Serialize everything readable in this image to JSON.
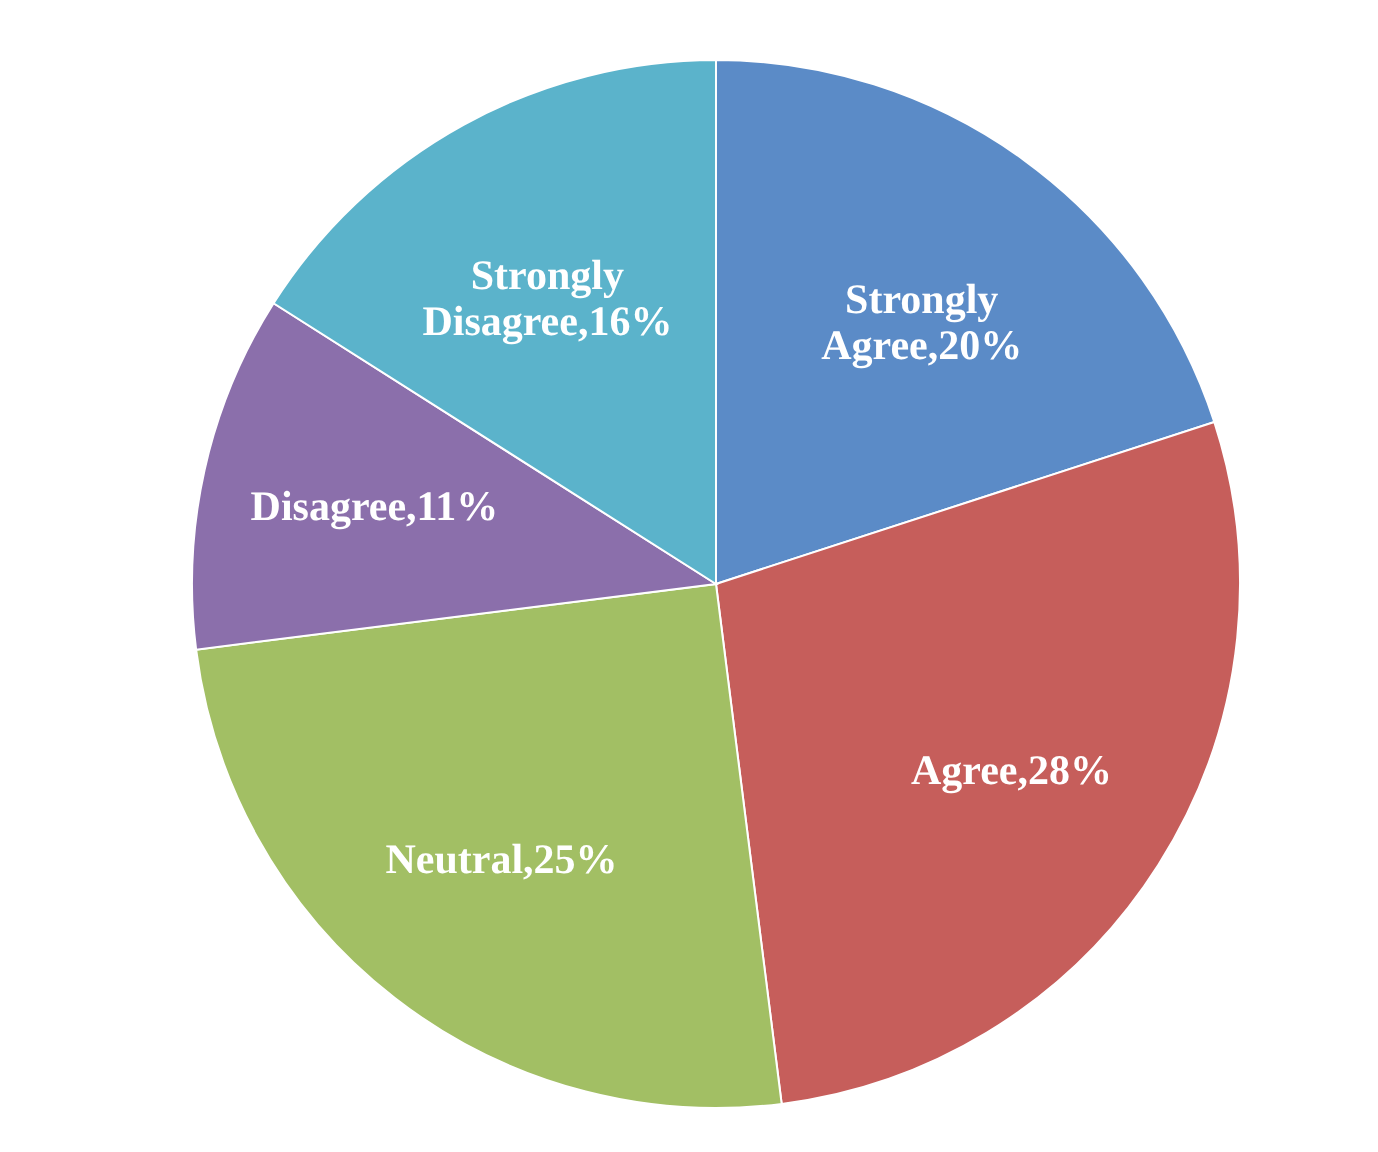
{
  "chart_data": {
    "type": "pie",
    "categories": [
      "Strongly Agree",
      "Agree",
      "Neutral",
      "Disagree",
      "Strongly Disagree"
    ],
    "values": [
      20,
      28,
      25,
      11,
      16
    ],
    "colors": [
      "#5b8bc7",
      "#c65e5b",
      "#a2bf64",
      "#8b6fab",
      "#5bb3cb"
    ],
    "value_labels": [
      "20%",
      "28%",
      "25%",
      "11%",
      "16%"
    ]
  }
}
